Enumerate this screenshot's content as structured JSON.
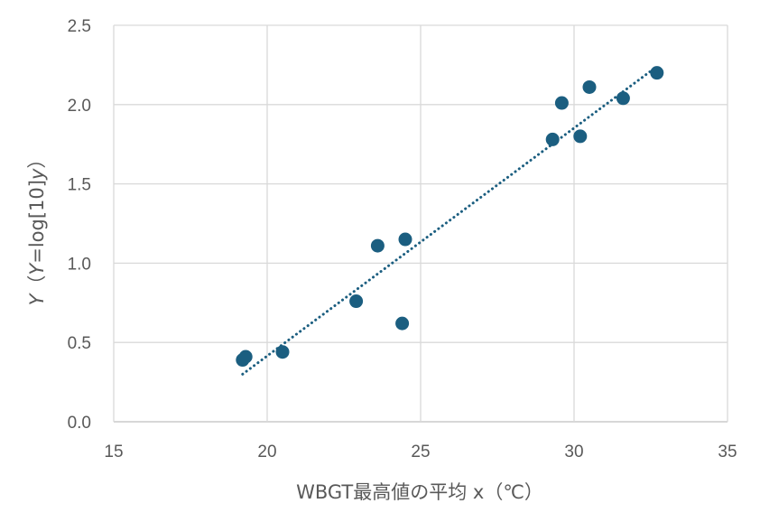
{
  "chart_data": {
    "type": "scatter",
    "xlabel": "WBGT最高値の平均 x（℃）",
    "ylabel_parts": {
      "y_italic": "Y",
      "paren_open": "（",
      "y_eq_italic": "Y",
      "log_text": "=log[10]",
      "small_y_italic": "y",
      "paren_close": "）"
    },
    "xlim": [
      15,
      35
    ],
    "ylim": [
      0,
      2.5
    ],
    "x_ticks": [
      15,
      20,
      25,
      30,
      35
    ],
    "y_ticks": [
      "0.0",
      "0.5",
      "1.0",
      "1.5",
      "2.0",
      "2.5"
    ],
    "grid": true,
    "marker_color": "#1b5e80",
    "trendline_color": "#1b5e80",
    "points": [
      {
        "x": 19.2,
        "y": 0.39
      },
      {
        "x": 19.3,
        "y": 0.41
      },
      {
        "x": 20.5,
        "y": 0.44
      },
      {
        "x": 22.9,
        "y": 0.76
      },
      {
        "x": 23.6,
        "y": 1.11
      },
      {
        "x": 24.4,
        "y": 0.62
      },
      {
        "x": 24.5,
        "y": 1.15
      },
      {
        "x": 29.3,
        "y": 1.78
      },
      {
        "x": 29.6,
        "y": 2.01
      },
      {
        "x": 30.2,
        "y": 1.8
      },
      {
        "x": 30.5,
        "y": 2.11
      },
      {
        "x": 31.6,
        "y": 2.04
      },
      {
        "x": 32.7,
        "y": 2.2
      }
    ],
    "trendline": {
      "type": "linear",
      "x_range": [
        19.2,
        32.7
      ],
      "y_range": [
        0.3,
        2.24
      ]
    }
  }
}
